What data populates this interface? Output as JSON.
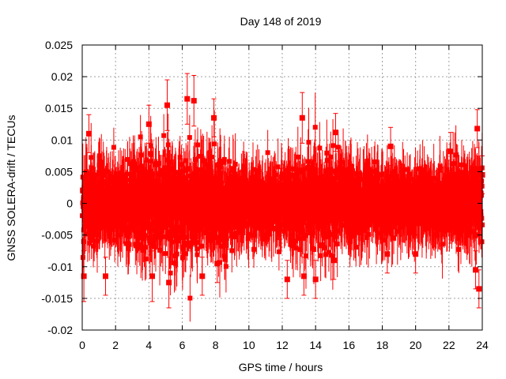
{
  "chart_data": {
    "type": "scatter",
    "title": "Day 148 of 2019",
    "xlabel": "GPS time / hours",
    "ylabel": "GNSS SOLERA-drift / TECUs",
    "xlim": [
      0,
      24
    ],
    "ylim": [
      -0.02,
      0.025
    ],
    "x_ticks": [
      0,
      2,
      4,
      6,
      8,
      10,
      12,
      14,
      16,
      18,
      20,
      22,
      24
    ],
    "x_tick_labels": [
      "0",
      "2",
      "4",
      "6",
      "8",
      "10",
      "12",
      "14",
      "16",
      "18",
      "20",
      "22",
      "24"
    ],
    "y_ticks": [
      -0.02,
      -0.015,
      -0.01,
      -0.005,
      0,
      0.005,
      0.01,
      0.015,
      0.02,
      0.025
    ],
    "y_tick_labels": [
      "-0.02",
      "-0.015",
      "-0.01",
      "-0.005",
      "0",
      "0.005",
      "0.01",
      "0.015",
      "0.02",
      "0.025"
    ],
    "grid": true,
    "series": [
      {
        "color": "#ff0000",
        "marker": "square",
        "error_bars": true,
        "envelope": {
          "x": [
            0,
            1,
            2,
            3,
            4,
            5,
            6,
            7,
            8,
            9,
            10,
            11,
            12,
            13,
            14,
            15,
            16,
            17,
            18,
            19,
            20,
            21,
            22,
            23,
            24
          ],
          "spread": [
            0.006,
            0.0065,
            0.0065,
            0.007,
            0.0075,
            0.008,
            0.0085,
            0.008,
            0.0075,
            0.006,
            0.005,
            0.005,
            0.0055,
            0.0075,
            0.008,
            0.007,
            0.006,
            0.0055,
            0.005,
            0.005,
            0.0045,
            0.005,
            0.0055,
            0.006,
            0.006
          ],
          "typical_error": 0.004
        },
        "highlight_points": [
          {
            "x": 0.1,
            "y": -0.0115,
            "err": 0.004
          },
          {
            "x": 0.4,
            "y": 0.011,
            "err": 0.003
          },
          {
            "x": 1.4,
            "y": -0.0115,
            "err": 0.003
          },
          {
            "x": 4.0,
            "y": 0.0125,
            "err": 0.003
          },
          {
            "x": 4.2,
            "y": -0.0115,
            "err": 0.004
          },
          {
            "x": 5.1,
            "y": 0.0155,
            "err": 0.004
          },
          {
            "x": 5.2,
            "y": -0.0125,
            "err": 0.004
          },
          {
            "x": 6.3,
            "y": 0.0165,
            "err": 0.004
          },
          {
            "x": 6.7,
            "y": 0.0162,
            "err": 0.004
          },
          {
            "x": 7.2,
            "y": -0.0115,
            "err": 0.003
          },
          {
            "x": 7.9,
            "y": 0.0135,
            "err": 0.003
          },
          {
            "x": 8.1,
            "y": -0.0095,
            "err": 0.003
          },
          {
            "x": 12.3,
            "y": -0.012,
            "err": 0.003
          },
          {
            "x": 13.2,
            "y": 0.0135,
            "err": 0.004
          },
          {
            "x": 13.3,
            "y": -0.0115,
            "err": 0.003
          },
          {
            "x": 14.0,
            "y": -0.012,
            "err": 0.003
          },
          {
            "x": 15.2,
            "y": 0.0112,
            "err": 0.003
          },
          {
            "x": 15.1,
            "y": -0.009,
            "err": 0.003
          },
          {
            "x": 18.3,
            "y": -0.008,
            "err": 0.003
          },
          {
            "x": 18.5,
            "y": 0.009,
            "err": 0.003
          },
          {
            "x": 20.0,
            "y": -0.008,
            "err": 0.003
          },
          {
            "x": 22.1,
            "y": 0.0082,
            "err": 0.003
          },
          {
            "x": 23.7,
            "y": 0.0118,
            "err": 0.003
          },
          {
            "x": 23.6,
            "y": -0.0105,
            "err": 0.003
          },
          {
            "x": 23.8,
            "y": -0.0135,
            "err": 0.003
          },
          {
            "x": 24.0,
            "y": 0.0045,
            "err": 0.003
          }
        ]
      }
    ]
  }
}
